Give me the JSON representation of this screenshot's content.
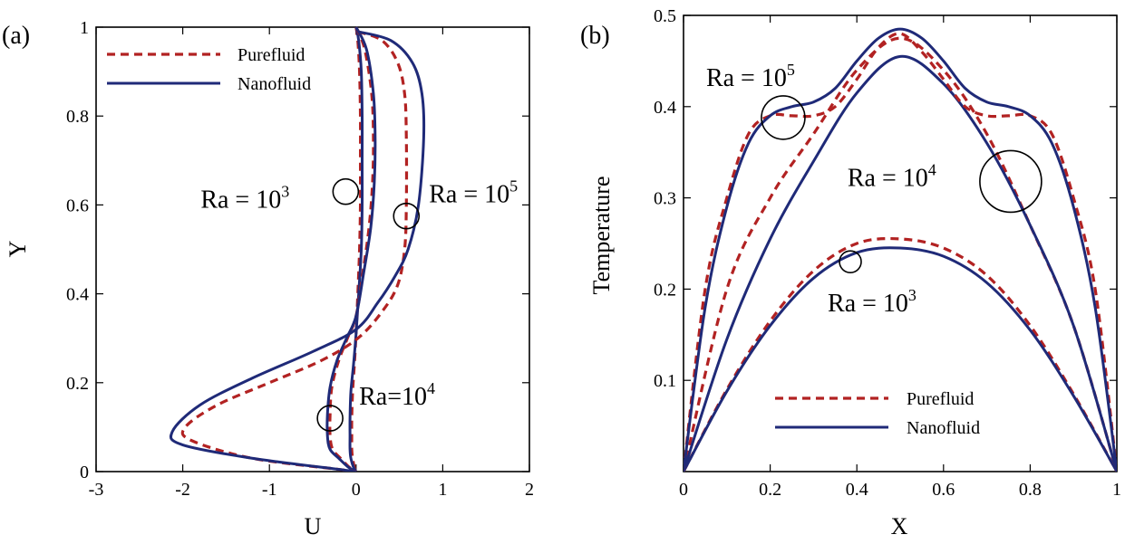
{
  "chart_data": [
    {
      "type": "line",
      "panel_label": "(a)",
      "xlabel": "U",
      "ylabel": "Y",
      "xlim": [
        -3,
        2
      ],
      "ylim": [
        0,
        1
      ],
      "xticks": [
        "-3",
        "-2",
        "-1",
        "0",
        "1",
        "2"
      ],
      "yticks": [
        "0",
        "0.2",
        "0.4",
        "0.6",
        "0.8",
        "1"
      ],
      "legend": {
        "placement": "top-left",
        "entries": [
          "Purefluid",
          "Nanofluid"
        ]
      },
      "colors": {
        "Purefluid": "#b22222",
        "Nanofluid": "#1f2a78"
      },
      "annotations": [
        {
          "text": "Ra = 10",
          "sup": "3",
          "circle_at": [
            -0.12,
            0.63
          ]
        },
        {
          "text": "Ra = 10",
          "sup": "5",
          "circle_at": [
            0.58,
            0.575
          ]
        },
        {
          "text": "Ra=10",
          "sup": "4",
          "circle_at": [
            -0.3,
            0.12
          ]
        }
      ],
      "series": [
        {
          "name": "Purefluid",
          "group": "Ra=10^3",
          "x": [
            0,
            0.02,
            0.04,
            0.05,
            0.05,
            0.05,
            0.04,
            0.02,
            0,
            -0.02,
            -0.04,
            -0.05,
            -0.05,
            -0.05,
            -0.04,
            -0.02,
            0
          ],
          "y": [
            1.0,
            0.97,
            0.9,
            0.8,
            0.7,
            0.6,
            0.5,
            0.4,
            0.31,
            0.24,
            0.18,
            0.12,
            0.08,
            0.05,
            0.03,
            0.01,
            0.0
          ]
        },
        {
          "name": "Nanofluid",
          "group": "Ra=10^3",
          "x": [
            0,
            0.03,
            0.06,
            0.07,
            0.07,
            0.07,
            0.06,
            0.03,
            0,
            -0.03,
            -0.06,
            -0.07,
            -0.07,
            -0.07,
            -0.06,
            -0.03,
            0
          ],
          "y": [
            1.0,
            0.97,
            0.9,
            0.8,
            0.7,
            0.6,
            0.5,
            0.4,
            0.31,
            0.24,
            0.18,
            0.12,
            0.08,
            0.05,
            0.03,
            0.01,
            0.0
          ]
        },
        {
          "name": "Purefluid",
          "group": "Ra=10^4",
          "x": [
            0,
            0.1,
            0.18,
            0.2,
            0.19,
            0.15,
            0.08,
            0,
            -0.1,
            -0.2,
            -0.28,
            -0.3,
            -0.3,
            -0.27,
            -0.18,
            -0.08,
            0
          ],
          "y": [
            1.0,
            0.95,
            0.85,
            0.75,
            0.65,
            0.55,
            0.45,
            0.35,
            0.3,
            0.25,
            0.19,
            0.13,
            0.08,
            0.05,
            0.03,
            0.01,
            0.0
          ]
        },
        {
          "name": "Nanofluid",
          "group": "Ra=10^4",
          "x": [
            0,
            0.12,
            0.2,
            0.22,
            0.21,
            0.17,
            0.09,
            0,
            -0.11,
            -0.22,
            -0.3,
            -0.33,
            -0.33,
            -0.3,
            -0.2,
            -0.09,
            0
          ],
          "y": [
            1.0,
            0.95,
            0.85,
            0.75,
            0.65,
            0.55,
            0.45,
            0.35,
            0.3,
            0.25,
            0.19,
            0.13,
            0.08,
            0.05,
            0.03,
            0.01,
            0.0
          ]
        },
        {
          "name": "Purefluid",
          "group": "Ra=10^5",
          "x": [
            0.02,
            0.3,
            0.48,
            0.56,
            0.58,
            0.58,
            0.56,
            0.48,
            0.3,
            0.02,
            -0.4,
            -1.0,
            -1.6,
            -1.97,
            -1.9,
            -1.2,
            -0.2,
            0
          ],
          "y": [
            0.99,
            0.97,
            0.92,
            0.85,
            0.75,
            0.6,
            0.5,
            0.42,
            0.36,
            0.3,
            0.25,
            0.2,
            0.15,
            0.1,
            0.07,
            0.03,
            0.005,
            0.0
          ]
        },
        {
          "name": "Nanofluid",
          "group": "Ra=10^5",
          "x": [
            0.02,
            0.4,
            0.65,
            0.76,
            0.78,
            0.72,
            0.6,
            0.45,
            0.25,
            0.0,
            -0.5,
            -1.2,
            -1.8,
            -2.12,
            -2.0,
            -1.2,
            -0.2,
            0
          ],
          "y": [
            0.99,
            0.97,
            0.92,
            0.85,
            0.75,
            0.6,
            0.5,
            0.44,
            0.38,
            0.32,
            0.27,
            0.21,
            0.15,
            0.09,
            0.06,
            0.03,
            0.005,
            0.0
          ]
        }
      ]
    },
    {
      "type": "line",
      "panel_label": "(b)",
      "xlabel": "X",
      "ylabel": "Temperature",
      "xlim": [
        0,
        1
      ],
      "ylim": [
        0,
        0.5
      ],
      "xticks": [
        "0",
        "0.2",
        "0.4",
        "0.6",
        "0.8",
        "1"
      ],
      "yticks": [
        "0.1",
        "0.2",
        "0.3",
        "0.4",
        "0.5"
      ],
      "legend": {
        "placement": "bottom-center",
        "entries": [
          "Purefluid",
          "Nanofluid"
        ]
      },
      "colors": {
        "Purefluid": "#b22222",
        "Nanofluid": "#1f2a78"
      },
      "annotations": [
        {
          "text": "Ra = 10",
          "sup": "5",
          "circle_at": [
            0.23,
            0.388
          ]
        },
        {
          "text": "Ra = 10",
          "sup": "4",
          "circle_at": [
            0.755,
            0.318
          ]
        },
        {
          "text": "Ra = 10",
          "sup": "3",
          "circle_at": [
            0.385,
            0.23
          ]
        }
      ],
      "series": [
        {
          "name": "Purefluid",
          "group": "Ra=10^3",
          "x": [
            0,
            0.1,
            0.2,
            0.3,
            0.4,
            0.5,
            0.6,
            0.7,
            0.8,
            0.9,
            1.0
          ],
          "y": [
            0,
            0.09,
            0.165,
            0.22,
            0.25,
            0.255,
            0.245,
            0.215,
            0.16,
            0.085,
            0
          ]
        },
        {
          "name": "Nanofluid",
          "group": "Ra=10^3",
          "x": [
            0,
            0.1,
            0.2,
            0.3,
            0.4,
            0.5,
            0.6,
            0.7,
            0.8,
            0.9,
            1.0
          ],
          "y": [
            0,
            0.088,
            0.16,
            0.212,
            0.24,
            0.245,
            0.236,
            0.207,
            0.155,
            0.083,
            0
          ]
        },
        {
          "name": "Purefluid",
          "group": "Ra=10^4",
          "x": [
            0,
            0.1,
            0.2,
            0.3,
            0.4,
            0.5,
            0.6,
            0.7,
            0.8,
            0.9,
            1.0
          ],
          "y": [
            0,
            0.2,
            0.3,
            0.37,
            0.44,
            0.475,
            0.44,
            0.37,
            0.27,
            0.16,
            0
          ]
        },
        {
          "name": "Nanofluid",
          "group": "Ra=10^4",
          "x": [
            0,
            0.1,
            0.2,
            0.3,
            0.4,
            0.5,
            0.6,
            0.7,
            0.8,
            0.9,
            1.0
          ],
          "y": [
            0,
            0.145,
            0.255,
            0.34,
            0.415,
            0.455,
            0.425,
            0.36,
            0.27,
            0.16,
            0
          ]
        },
        {
          "name": "Purefluid",
          "group": "Ra=10^5",
          "x": [
            0,
            0.05,
            0.1,
            0.15,
            0.2,
            0.25,
            0.3,
            0.35,
            0.4,
            0.45,
            0.5,
            0.55,
            0.6,
            0.65,
            0.7,
            0.75,
            0.8,
            0.85,
            0.9,
            0.95,
            1.0
          ],
          "y": [
            0,
            0.2,
            0.3,
            0.37,
            0.39,
            0.39,
            0.39,
            0.4,
            0.43,
            0.465,
            0.48,
            0.46,
            0.43,
            0.4,
            0.39,
            0.39,
            0.39,
            0.37,
            0.3,
            0.2,
            0
          ]
        },
        {
          "name": "Nanofluid",
          "group": "Ra=10^5",
          "x": [
            0,
            0.05,
            0.1,
            0.15,
            0.2,
            0.25,
            0.3,
            0.35,
            0.4,
            0.45,
            0.5,
            0.55,
            0.6,
            0.65,
            0.7,
            0.75,
            0.8,
            0.85,
            0.9,
            0.95,
            1.0
          ],
          "y": [
            0,
            0.18,
            0.29,
            0.36,
            0.39,
            0.4,
            0.405,
            0.42,
            0.45,
            0.475,
            0.485,
            0.475,
            0.45,
            0.42,
            0.405,
            0.4,
            0.39,
            0.36,
            0.29,
            0.18,
            0
          ]
        }
      ]
    }
  ]
}
